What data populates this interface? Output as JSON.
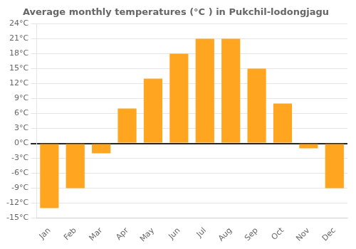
{
  "chart_data": {
    "type": "bar",
    "title": "Average monthly temperatures (°C ) in Pukchil-lodongjagu",
    "categories": [
      "Jan",
      "Feb",
      "Mar",
      "Apr",
      "May",
      "Jun",
      "Jul",
      "Aug",
      "Sep",
      "Oct",
      "Nov",
      "Dec"
    ],
    "values": [
      -13,
      -9,
      -2,
      7,
      13,
      18,
      21,
      21,
      15,
      8,
      -1,
      -9
    ],
    "color": "#FFA520",
    "ylim": [
      -15,
      24
    ],
    "yticks": [
      {
        "value": -15,
        "label": "-15°C"
      },
      {
        "value": -12,
        "label": "-12°C"
      },
      {
        "value": -9,
        "label": "-9°C"
      },
      {
        "value": -6,
        "label": "-6°C"
      },
      {
        "value": -3,
        "label": "-3°C"
      },
      {
        "value": 0,
        "label": "0°C"
      },
      {
        "value": 3,
        "label": "3°C"
      },
      {
        "value": 6,
        "label": "6°C"
      },
      {
        "value": 9,
        "label": "9°C"
      },
      {
        "value": 12,
        "label": "12°C"
      },
      {
        "value": 15,
        "label": "15°C"
      },
      {
        "value": 18,
        "label": "18°C"
      },
      {
        "value": 21,
        "label": "21°C"
      },
      {
        "value": 24,
        "label": "24°C"
      }
    ],
    "grid": true
  }
}
